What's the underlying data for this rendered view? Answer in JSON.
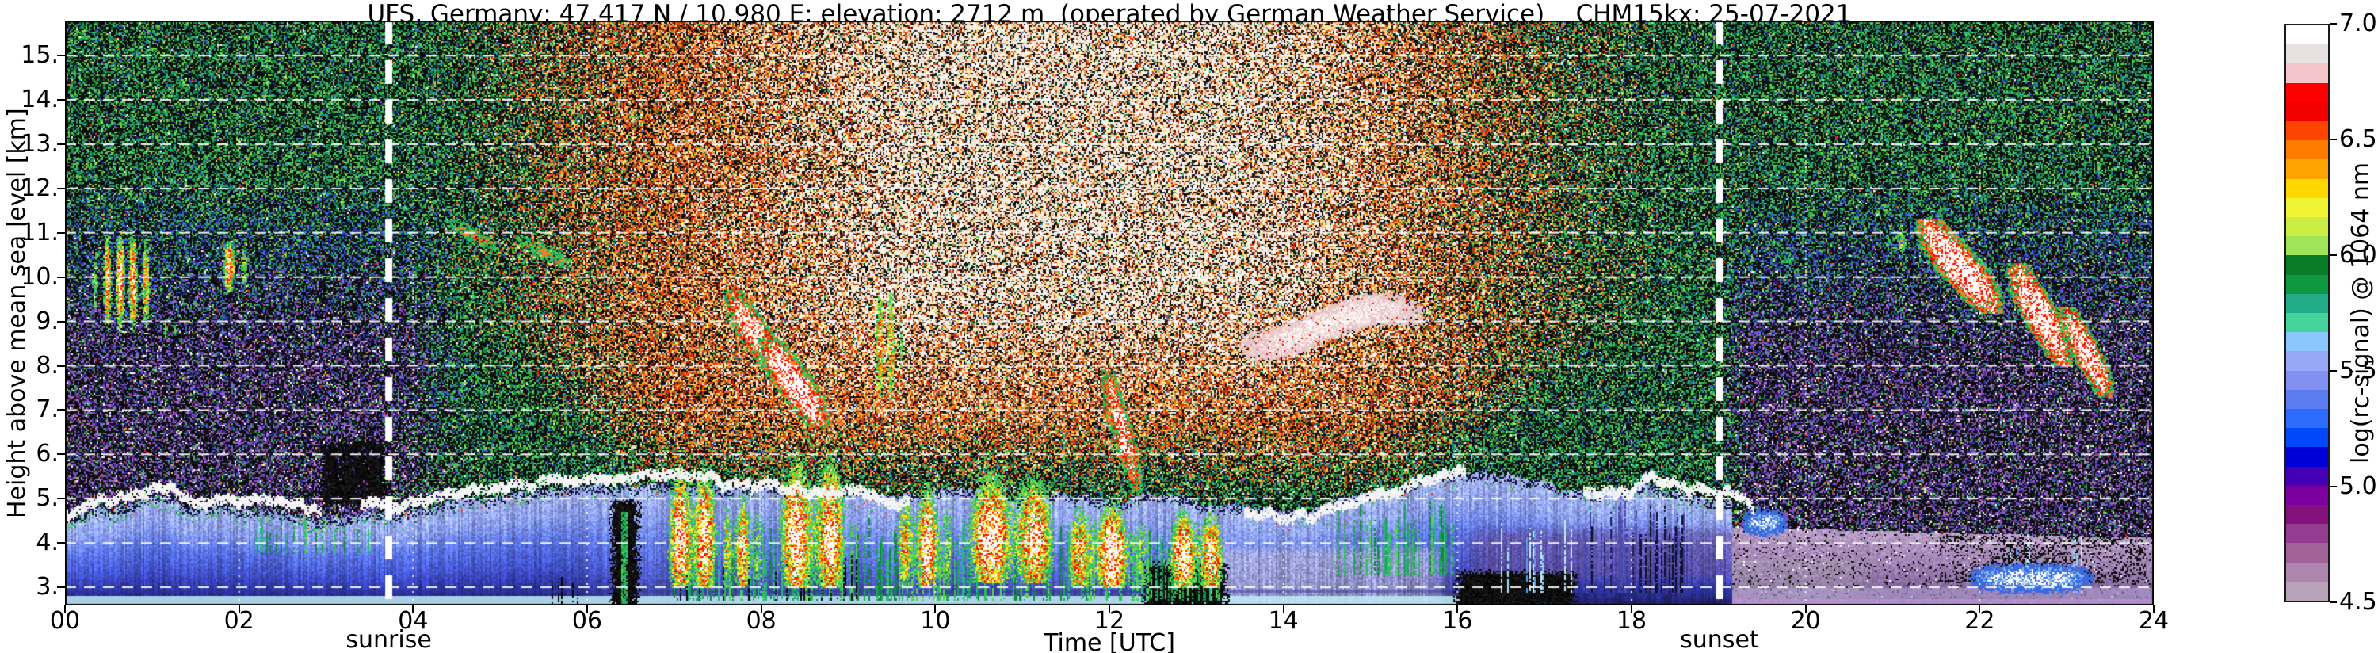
{
  "header": {
    "title": "UFS, Germany; 47.417 N / 10.980 E; elevation: 2712 m  (operated by German Weather Service)    CHM15kx: 25-07-2021"
  },
  "x_axis": {
    "label": "Time [UTC]",
    "ticks": [
      "00",
      "02",
      "04",
      "06",
      "08",
      "10",
      "12",
      "14",
      "16",
      "18",
      "20",
      "22",
      "24"
    ],
    "tick_hours": [
      0,
      2,
      4,
      6,
      8,
      10,
      12,
      14,
      16,
      18,
      20,
      22,
      24
    ]
  },
  "y_axis": {
    "label": "Height above mean sea level [km]",
    "ticks": [
      "3.",
      "4.",
      "5.",
      "6.",
      "7.",
      "8.",
      "9.",
      "10.",
      "11.",
      "12.",
      "13.",
      "14.",
      "15."
    ],
    "tick_km": [
      3,
      4,
      5,
      6,
      7,
      8,
      9,
      10,
      11,
      12,
      13,
      14,
      15
    ]
  },
  "colorbar": {
    "label": "log(rc-signal) @ 1064 nm",
    "ticks": [
      "7.0",
      "6.5",
      "6.0",
      "5.5",
      "5.0",
      "4.5"
    ],
    "tick_values": [
      7.0,
      6.5,
      6.0,
      5.5,
      5.0,
      4.5
    ],
    "range": [
      4.5,
      7.0
    ]
  },
  "annotations": {
    "sunrise": {
      "label": "sunrise",
      "time_utc": 3.72
    },
    "sunset": {
      "label": "sunset",
      "time_utc": 19.01
    }
  },
  "chart_data": {
    "type": "heatmap",
    "title": "UFS, Germany; 47.417 N / 10.980 E; elevation: 2712 m  (operated by German Weather Service)    CHM15kx: 25-07-2021",
    "xlabel": "Time [UTC]",
    "ylabel": "Height above mean sea level [km]",
    "colorbar_label": "log(rc-signal) @ 1064 nm",
    "x_hours_range": [
      0,
      24
    ],
    "y_range": [
      2.59,
      15.79
    ],
    "value_range": [
      4.5,
      7.0
    ],
    "sunrise_utc": 3.72,
    "sunset_utc": 19.01,
    "gridlines": {
      "horizontal_km": [
        3,
        4,
        5,
        6,
        7,
        8,
        9,
        10,
        11,
        12,
        13,
        14,
        15
      ],
      "vertical_hours": [
        2,
        4,
        6,
        8,
        10,
        12,
        14,
        16,
        18,
        20,
        22
      ]
    },
    "colormap_colors": [
      "#b8a2b8",
      "#ac86ac",
      "#a06298",
      "#943c90",
      "#84107c",
      "#7c00a0",
      "#4400b4",
      "#0000d8",
      "#0048f8",
      "#2e6cff",
      "#5c7cf2",
      "#8490f0",
      "#98a8f8",
      "#8cc6fe",
      "#44d49c",
      "#22ac88",
      "#0f9840",
      "#087c28",
      "#a2e458",
      "#ccee44",
      "#f0f434",
      "#ffd800",
      "#ffa400",
      "#ff7c00",
      "#ff4400",
      "#f20000",
      "#ff0000",
      "#f2c6ca",
      "#e9e0e2",
      "#ffffff"
    ],
    "boundary_layer_top_km": [
      4.6,
      5.1,
      4.6,
      4.35,
      4.55,
      4.9,
      5.05,
      5.1,
      5.05,
      5.0,
      5.0,
      5.0,
      4.95,
      4.8,
      4.6,
      4.9,
      5.45,
      5.5,
      5.25,
      4.75,
      4.32,
      4.27,
      4.22,
      4.17,
      4.12
    ],
    "cap_segments_hours": [
      [
        0,
        2.95
      ],
      [
        3.4,
        9.7
      ],
      [
        13.55,
        16.1
      ],
      [
        17.45,
        19.42
      ]
    ],
    "aerosol_gradient": [
      [
        0,
        "#a8b4f6"
      ],
      [
        0.25,
        "#8ca0f4"
      ],
      [
        0.45,
        "#5a74e8"
      ],
      [
        0.68,
        "#4152cc"
      ],
      [
        0.86,
        "#2c2f9e"
      ],
      [
        1,
        "#20205e"
      ]
    ],
    "evening_gradient": [
      [
        0,
        "#b89ec6"
      ],
      [
        0.5,
        "#9d7fb2"
      ],
      [
        1,
        "#6e5390"
      ]
    ],
    "palettes": {
      "green": [
        "#2ec05e",
        "#4ccf52",
        "#1da04e",
        "#0f7c38",
        "#27b888",
        "#1a9a8c",
        "#63d44a",
        "#93dc42",
        "#2f9e2f",
        "#16864a",
        "#0d6e50"
      ],
      "blue": [
        "#2a48cc",
        "#3a5ce8",
        "#4646b8",
        "#5870e0",
        "#24309a",
        "#2f77d8",
        "#1e2f88"
      ],
      "warm_white": [
        "#ffffff",
        "#f7eedd",
        "#f0e2c6",
        "#ffffff",
        "#efe6e2"
      ],
      "warm": [
        "#ffb347",
        "#ff8822",
        "#f25500",
        "#e02200",
        "#ffd94e",
        "#c8541e",
        "#8a4423",
        "#d89a55",
        "#b03010",
        "#ff6600"
      ],
      "purple": [
        "#7a3fa0",
        "#8f54b4",
        "#a468c8",
        "#5c2f90",
        "#b87cd8",
        "#4a3ab0",
        "#6658e0",
        "#3a2f9a",
        "#9a4ab0",
        "#2f2f8e",
        "#8a66d0"
      ],
      "sparse": [
        "#ffffff",
        "#ffe94e",
        "#ff9922",
        "#ff2200",
        "#7dff9e",
        "#ffffff"
      ],
      "cyanst": [
        "#8fd0f0",
        "#a8e0f4",
        "#5f9fe8",
        "#c2ecf8"
      ],
      "darkst": [
        "#050508",
        "#0c0c16",
        "#101020"
      ],
      "darkbluest": [
        "#20205a",
        "#3a3a9a",
        "#101028",
        "#4a4ab0"
      ],
      "greenst": [
        "#2ec05e",
        "#57d44e",
        "#19a84e",
        "#0d8c3c",
        "#25b87f"
      ]
    },
    "features": [
      {
        "type": "flame",
        "t": [
          0.3,
          1.05
        ],
        "h": [
          8.6,
          11.2
        ],
        "max": 1.0,
        "streaks": 5
      },
      {
        "type": "flame",
        "t": [
          1.7,
          2.1
        ],
        "h": [
          9.5,
          10.9
        ],
        "max": 0.95,
        "streaks": 2
      },
      {
        "type": "flame",
        "t": [
          1.08,
          1.32
        ],
        "h": [
          8.4,
          9.3
        ],
        "max": 0.45,
        "streaks": 2
      },
      {
        "type": "slant",
        "t": [
          4.35,
          5.05
        ],
        "h": [
          10.6,
          11.3
        ],
        "max": 0.5
      },
      {
        "type": "slant",
        "t": [
          5.1,
          5.9
        ],
        "h": [
          10.2,
          10.9
        ],
        "max": 0.45
      },
      {
        "type": "slant",
        "t": [
          7.55,
          8.3
        ],
        "h": [
          7.8,
          9.7
        ],
        "max": 0.9
      },
      {
        "type": "slant",
        "t": [
          7.95,
          8.8
        ],
        "h": [
          6.6,
          8.6
        ],
        "max": 1.0
      },
      {
        "type": "flame",
        "t": [
          9.25,
          9.65
        ],
        "h": [
          7.0,
          9.9
        ],
        "max": 0.9,
        "streaks": 3
      },
      {
        "type": "slant",
        "t": [
          11.9,
          12.4
        ],
        "h": [
          5.2,
          7.9
        ],
        "max": 0.8
      },
      {
        "type": "conv",
        "t": [
          6.85,
          7.55
        ],
        "h": [
          3.0,
          6.3
        ],
        "max": 1.0
      },
      {
        "type": "conv",
        "t": [
          7.55,
          8.0
        ],
        "h": [
          3.0,
          5.6
        ],
        "max": 0.8
      },
      {
        "type": "conv",
        "t": [
          8.1,
          9.05
        ],
        "h": [
          3.0,
          6.6
        ],
        "max": 1.0
      },
      {
        "type": "conv",
        "t": [
          9.55,
          10.2
        ],
        "h": [
          3.0,
          5.8
        ],
        "max": 0.9
      },
      {
        "type": "conv",
        "t": [
          10.2,
          11.45
        ],
        "h": [
          3.1,
          6.1
        ],
        "max": 1.0
      },
      {
        "type": "conv",
        "t": [
          11.5,
          12.45
        ],
        "h": [
          3.0,
          5.3
        ],
        "max": 1.0
      },
      {
        "type": "conv",
        "t": [
          12.55,
          13.35
        ],
        "h": [
          3.0,
          5.1
        ],
        "max": 0.95
      },
      {
        "type": "wave",
        "t": [
          13.45,
          15.65
        ],
        "h": [
          8.0,
          9.7
        ],
        "max": 0.85
      },
      {
        "type": "slant",
        "t": [
          19.45,
          20.1
        ],
        "h": [
          9.9,
          11.0
        ],
        "max": 0.3
      },
      {
        "type": "flame",
        "t": [
          20.9,
          21.25
        ],
        "h": [
          10.2,
          11.4
        ],
        "max": 0.5,
        "streaks": 2
      },
      {
        "type": "slant",
        "t": [
          21.25,
          22.3
        ],
        "h": [
          9.2,
          11.3
        ],
        "max": 1.0
      },
      {
        "type": "slant",
        "t": [
          22.3,
          23.1
        ],
        "h": [
          8.0,
          10.3
        ],
        "max": 1.0
      },
      {
        "type": "slant",
        "t": [
          22.9,
          23.55
        ],
        "h": [
          7.3,
          9.3
        ],
        "max": 0.95
      },
      {
        "type": "bluecloud",
        "t": [
          19.25,
          19.8
        ],
        "h": [
          4.15,
          4.8
        ],
        "max": 0.9
      },
      {
        "type": "bluecloud",
        "t": [
          21.85,
          23.35
        ],
        "h": [
          2.85,
          3.55
        ],
        "max": 1.0
      },
      {
        "type": "streaks",
        "t": [
          2.2,
          3.6
        ],
        "h": [
          3.8,
          4.6
        ],
        "density": 0.3,
        "pal": "greenst"
      },
      {
        "type": "streaks",
        "t": [
          5.25,
          5.95
        ],
        "h": [
          2.62,
          3.3
        ],
        "density": 0.12,
        "pal": "darkst"
      },
      {
        "type": "streaks",
        "t": [
          7.0,
          13.3
        ],
        "h": [
          2.7,
          4.6
        ],
        "density": 0.45,
        "pal": "greenst"
      },
      {
        "type": "streaks",
        "t": [
          7.0,
          9.2
        ],
        "h": [
          2.7,
          3.9
        ],
        "density": 0.15,
        "pal": "darkst"
      },
      {
        "type": "streaks",
        "t": [
          14.55,
          15.95
        ],
        "h": [
          3.3,
          5.0
        ],
        "density": 0.5,
        "pal": "greenst"
      },
      {
        "type": "streaks",
        "t": [
          16.05,
          17.3
        ],
        "h": [
          2.9,
          4.6
        ],
        "density": 0.25,
        "pal": "cyanst"
      },
      {
        "type": "streaks",
        "t": [
          17.45,
          18.65
        ],
        "h": [
          2.9,
          5.1
        ],
        "density": 0.6,
        "pal": "darkbluest"
      },
      {
        "type": "streaks",
        "t": [
          22.0,
          23.3
        ],
        "h": [
          2.9,
          4.2
        ],
        "density": 0.2,
        "pal": "cyanst"
      },
      {
        "type": "clump",
        "t": [
          21.55,
          23.9
        ],
        "h": [
          3.1,
          4.15
        ],
        "density": 0.8
      }
    ],
    "gaps": [
      {
        "t": [
          6.28,
          6.58
        ],
        "h": [
          2.59,
          4.95
        ],
        "green_streak": true
      },
      {
        "t": [
          12.4,
          13.35
        ],
        "h": [
          2.59,
          3.55
        ]
      },
      {
        "t": [
          16.0,
          17.35
        ],
        "h": [
          2.59,
          3.35
        ]
      },
      {
        "t": [
          2.95,
          3.7
        ],
        "h": [
          4.85,
          6.3
        ],
        "purple_dots": true
      }
    ]
  }
}
